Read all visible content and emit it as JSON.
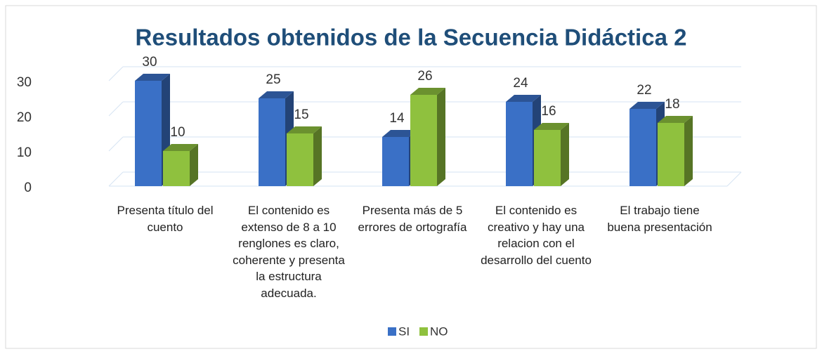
{
  "chart_data": {
    "type": "bar3d",
    "title": "Resultados obtenidos de la Secuencia Didáctica 2",
    "categories": [
      "Presenta título del cuento",
      "El contenido es extenso de 8 a 10 renglones es claro, coherente y presenta la estructura adecuada.",
      "Presenta más de 5 errores de ortografía",
      "El contenido es creativo y  hay una relacion con el desarrollo del cuento",
      "El trabajo tiene buena presentación"
    ],
    "series": [
      {
        "name": "SI",
        "color": "#3a70c6",
        "values": [
          30,
          25,
          14,
          24,
          22
        ]
      },
      {
        "name": "NO",
        "color": "#8fc13e",
        "values": [
          10,
          15,
          26,
          16,
          18
        ]
      }
    ],
    "ylim": [
      0,
      30
    ],
    "yticks": [
      0,
      10,
      20,
      30
    ],
    "grid": true,
    "legend": "bottom"
  }
}
